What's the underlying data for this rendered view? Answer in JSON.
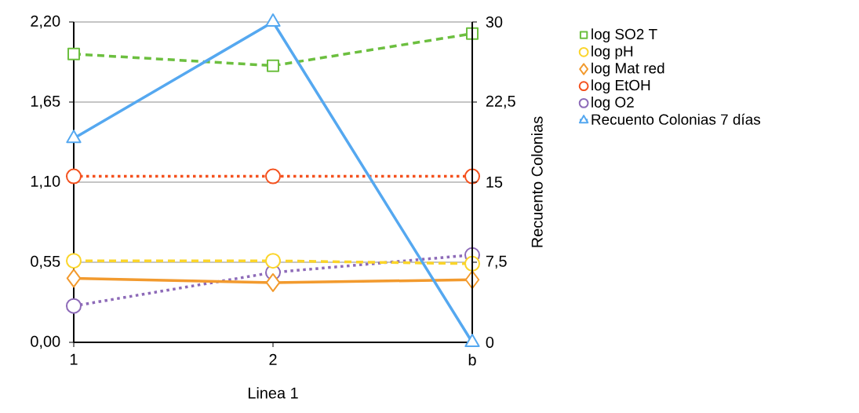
{
  "chart_data": {
    "type": "line",
    "categories": [
      "1",
      "2",
      "b"
    ],
    "xlabel": "Linea 1",
    "y2label": "Recuento Colonias",
    "ylim": [
      0,
      2.2
    ],
    "yticks": [
      {
        "value": 0,
        "label": "0,00"
      },
      {
        "value": 0.55,
        "label": "0,55"
      },
      {
        "value": 1.1,
        "label": "1,10"
      },
      {
        "value": 1.65,
        "label": "1,65"
      },
      {
        "value": 2.2,
        "label": "2,20"
      }
    ],
    "y2lim": [
      0,
      30
    ],
    "y2ticks": [
      0,
      {
        "value": 7.5,
        "label": "7,5"
      },
      15,
      {
        "value": 22.5,
        "label": "22,5"
      },
      30
    ],
    "grid": "y",
    "legend": "right",
    "series": [
      {
        "name": "log SO2 T",
        "color": "#6cbf3f",
        "marker": "square",
        "line_style": "dashed",
        "values": [
          1.98,
          1.9,
          2.12
        ]
      },
      {
        "name": "log pH",
        "color": "#fbd52a",
        "marker": "circle",
        "line_style": "dashed",
        "values": [
          0.56,
          0.56,
          0.54
        ]
      },
      {
        "name": "log Mat red",
        "color": "#f29a2e",
        "marker": "diamond",
        "line_style": "solid",
        "values": [
          0.44,
          0.41,
          0.43
        ]
      },
      {
        "name": "log EtOH",
        "color": "#f4511e",
        "marker": "circle",
        "line_style": "dotted",
        "values": [
          1.14,
          1.14,
          1.14
        ]
      },
      {
        "name": "log O2",
        "color": "#8d6ab8",
        "marker": "circle",
        "line_style": "dotted",
        "values": [
          0.25,
          0.48,
          0.6
        ]
      },
      {
        "name": "Recuento Colonias 7 días",
        "color": "#55a8f0",
        "marker": "triangle",
        "line_style": "solid",
        "axis": "y2",
        "values": [
          19.1,
          30,
          0
        ]
      }
    ]
  }
}
